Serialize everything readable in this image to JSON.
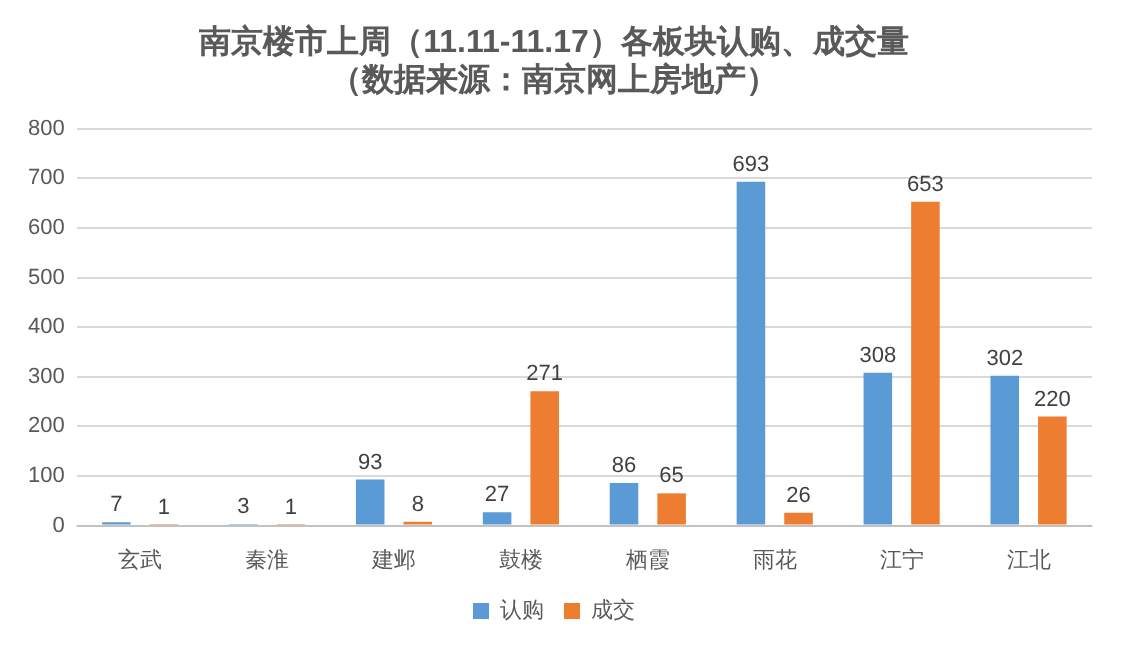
{
  "chart_data": {
    "type": "bar",
    "title": "南京楼市上周（11.11-11.17）各板块认购、成交量",
    "subtitle": "（数据来源：南京网上房地产）",
    "categories": [
      "玄武",
      "秦淮",
      "建邺",
      "鼓楼",
      "栖霞",
      "雨花",
      "江宁",
      "江北"
    ],
    "series": [
      {
        "name": "认购",
        "color": "#5b9bd5",
        "values": [
          7,
          3,
          93,
          27,
          86,
          693,
          308,
          302
        ]
      },
      {
        "name": "成交",
        "color": "#ed7d31",
        "values": [
          1,
          1,
          8,
          271,
          65,
          26,
          653,
          220
        ]
      }
    ],
    "ylim": [
      0,
      800
    ],
    "yticks": [
      0,
      100,
      200,
      300,
      400,
      500,
      600,
      700,
      800
    ],
    "grid": "y",
    "legend": "bottom",
    "data_labels": true
  }
}
